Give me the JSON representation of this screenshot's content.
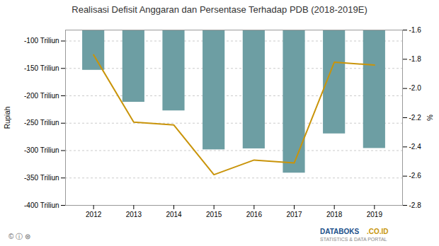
{
  "chart_data": {
    "type": "bar",
    "title": "Realisasi Defisit Anggaran dan Persentase Terhadap PDB (2018-2019E)",
    "x": [
      2012,
      2013,
      2014,
      2015,
      2016,
      2017,
      2018,
      2019
    ],
    "xlim": [
      2011.3,
      2019.7
    ],
    "xticks": [
      2012,
      2013,
      2014,
      2015,
      2016,
      2017,
      2018,
      2019
    ],
    "ylabel": "Rupiah",
    "y2label": "%",
    "ylim": [
      -400,
      -80
    ],
    "yticks": [
      {
        "value": -400,
        "label": "-400 Triliun"
      },
      {
        "value": -350,
        "label": "-350 Triliun"
      },
      {
        "value": -300,
        "label": "-300 Triliun"
      },
      {
        "value": -250,
        "label": "-250 Triliun"
      },
      {
        "value": -200,
        "label": "-200 Triliun"
      },
      {
        "value": -150,
        "label": "-150 Triliun"
      },
      {
        "value": -100,
        "label": "-100 Triliun"
      }
    ],
    "y2lim": [
      -2.8,
      -1.6
    ],
    "y2ticks": [
      -2.8,
      -2.6,
      -2.4,
      -2.2,
      {
        "value": -2,
        "label": "-2.0"
      },
      -1.8,
      -1.6
    ],
    "grid": true,
    "series": [
      {
        "type": "bar",
        "color": "#6d9ea3",
        "values": [
          -153.3,
          -211.7,
          -227.4,
          -298.5,
          -296.7,
          -341.0,
          -269.4,
          -296.0
        ]
      },
      {
        "type": "line",
        "color": "#c9940a",
        "axis": "y2",
        "values": [
          -1.77,
          -2.23,
          -2.25,
          -2.59,
          -2.49,
          -2.51,
          -1.82,
          -1.84
        ]
      }
    ],
    "annotations": [
      {
        "text": "© ⓘ ⊜",
        "color": "#666666"
      },
      {
        "text": "DATABOKS",
        "color": "#1a4f8a"
      },
      {
        "text": ".CO.ID",
        "color": "#c8960a"
      },
      {
        "text": "STATISTICS & DATA PORTAL",
        "color": "#888888"
      }
    ]
  }
}
